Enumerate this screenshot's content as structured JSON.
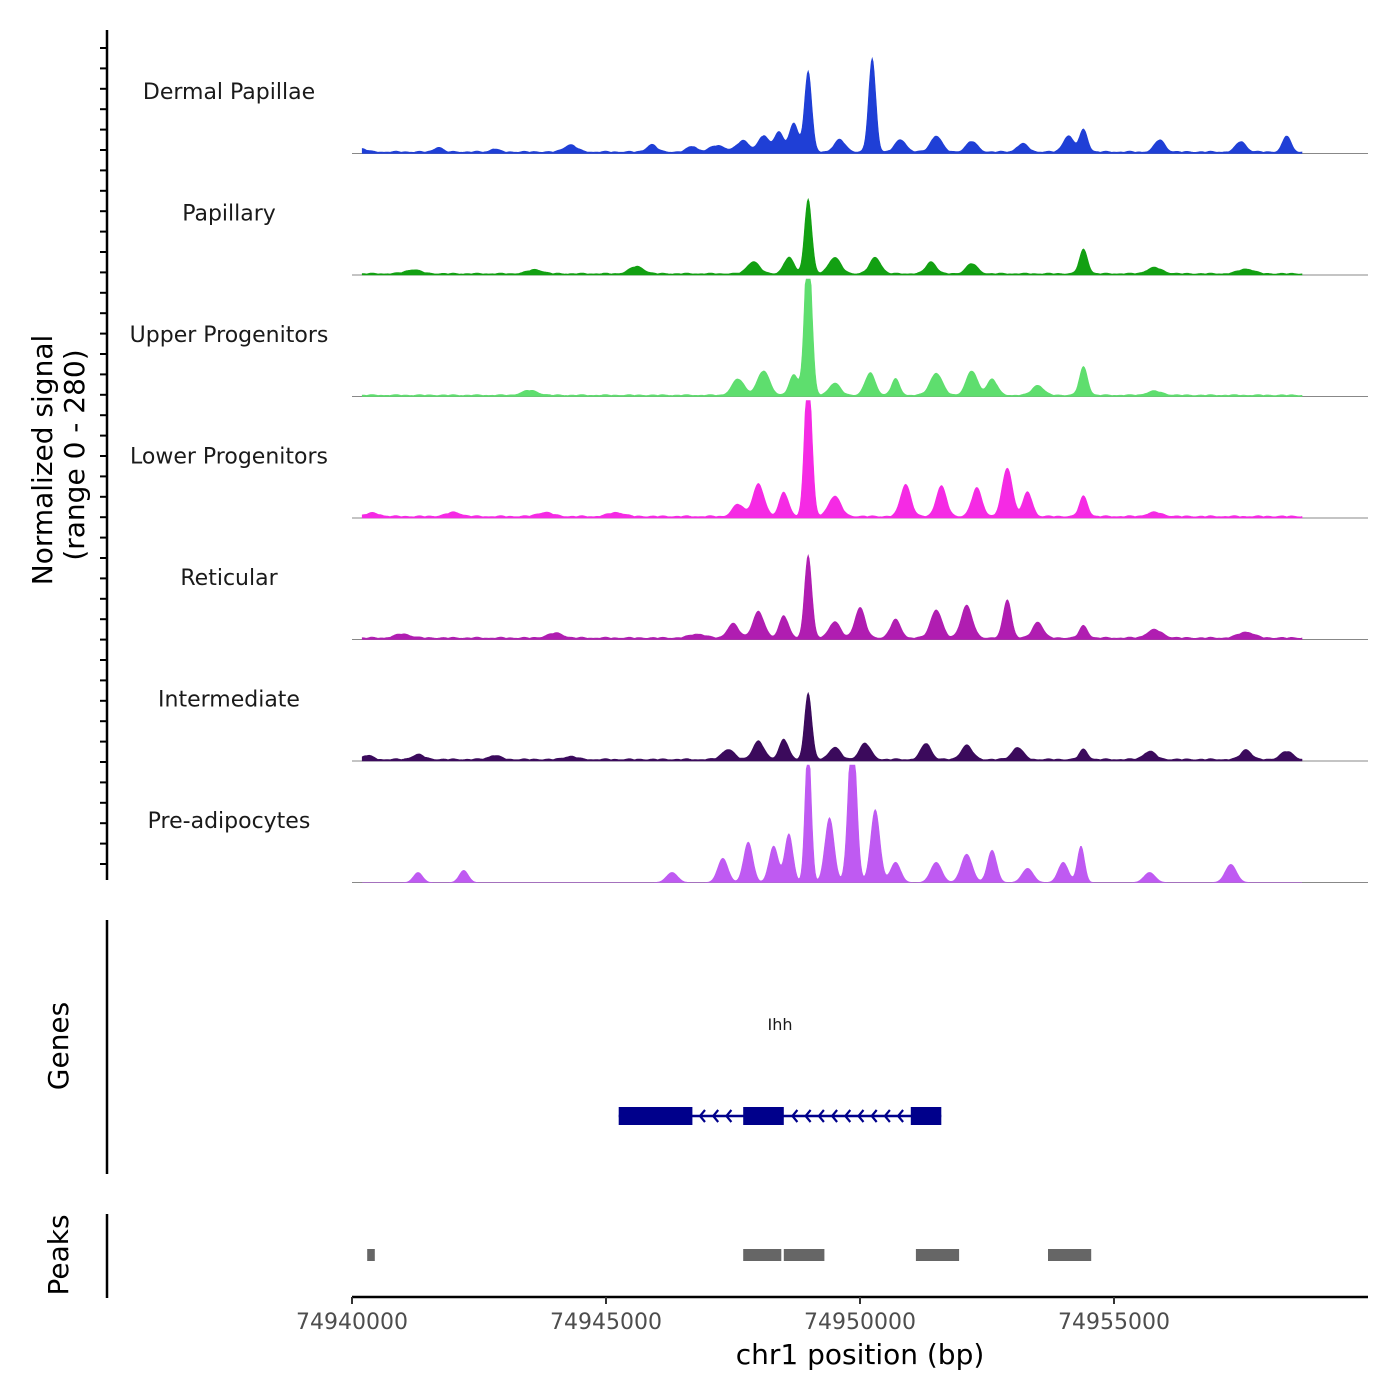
{
  "chart_data": {
    "type": "area",
    "title": "",
    "ylabel": "Normalized signal",
    "ylabel_range": "(range 0 - 280)",
    "xlabel": "chr1 position (bp)",
    "xlim": [
      74940000,
      74960000
    ],
    "ylim": [
      0,
      280
    ],
    "x_ticks": [
      74940000,
      74945000,
      74950000,
      74955000
    ],
    "x_tick_labels": [
      "74940000",
      "74945000",
      "74950000",
      "74955000"
    ],
    "series": [
      {
        "name": "Dermal Papillae",
        "color": "#1f3fd6",
        "baseline": 6,
        "peaks": [
          [
            74940200,
            8,
            90
          ],
          [
            74941700,
            12,
            80
          ],
          [
            74942800,
            8,
            80
          ],
          [
            74944300,
            18,
            120
          ],
          [
            74945900,
            18,
            100
          ],
          [
            74946700,
            14,
            100
          ],
          [
            74947200,
            16,
            150
          ],
          [
            74947700,
            28,
            120
          ],
          [
            74948100,
            40,
            100
          ],
          [
            74948400,
            50,
            90
          ],
          [
            74948700,
            70,
            90
          ],
          [
            74948980,
            200,
            70
          ],
          [
            74949600,
            30,
            110
          ],
          [
            74950240,
            230,
            70
          ],
          [
            74950800,
            30,
            110
          ],
          [
            74951500,
            40,
            110
          ],
          [
            74952200,
            26,
            110
          ],
          [
            74953200,
            20,
            110
          ],
          [
            74954100,
            40,
            100
          ],
          [
            74954400,
            55,
            80
          ],
          [
            74955900,
            30,
            100
          ],
          [
            74957500,
            26,
            100
          ],
          [
            74958400,
            40,
            80
          ]
        ]
      },
      {
        "name": "Papillary",
        "color": "#12a012",
        "baseline": 5,
        "peaks": [
          [
            74941200,
            10,
            150
          ],
          [
            74943600,
            10,
            150
          ],
          [
            74945600,
            18,
            140
          ],
          [
            74947900,
            30,
            120
          ],
          [
            74948600,
            40,
            100
          ],
          [
            74948980,
            185,
            70
          ],
          [
            74949500,
            40,
            120
          ],
          [
            74950300,
            40,
            110
          ],
          [
            74951400,
            30,
            100
          ],
          [
            74952200,
            25,
            110
          ],
          [
            74954400,
            60,
            80
          ],
          [
            74955800,
            15,
            150
          ],
          [
            74957600,
            12,
            150
          ]
        ]
      },
      {
        "name": "Upper Progenitors",
        "color": "#5ede6e",
        "baseline": 5,
        "peaks": [
          [
            74943500,
            12,
            150
          ],
          [
            74947600,
            40,
            120
          ],
          [
            74948100,
            60,
            120
          ],
          [
            74948700,
            50,
            90
          ],
          [
            74948980,
            390,
            70
          ],
          [
            74949500,
            30,
            110
          ],
          [
            74950200,
            55,
            100
          ],
          [
            74950700,
            40,
            80
          ],
          [
            74951500,
            55,
            120
          ],
          [
            74952200,
            60,
            110
          ],
          [
            74952600,
            40,
            100
          ],
          [
            74953500,
            25,
            110
          ],
          [
            74954400,
            70,
            80
          ],
          [
            74955800,
            10,
            150
          ]
        ]
      },
      {
        "name": "Lower Progenitors",
        "color": "#f52ae4",
        "baseline": 6,
        "peaks": [
          [
            74940400,
            8,
            150
          ],
          [
            74942000,
            10,
            150
          ],
          [
            74943800,
            10,
            150
          ],
          [
            74945200,
            10,
            150
          ],
          [
            74947600,
            30,
            110
          ],
          [
            74948000,
            80,
            110
          ],
          [
            74948500,
            60,
            90
          ],
          [
            74948980,
            370,
            70
          ],
          [
            74949500,
            50,
            120
          ],
          [
            74950900,
            80,
            100
          ],
          [
            74951600,
            75,
            100
          ],
          [
            74952300,
            70,
            100
          ],
          [
            74952900,
            120,
            100
          ],
          [
            74953300,
            60,
            90
          ],
          [
            74954400,
            50,
            80
          ],
          [
            74955800,
            10,
            150
          ]
        ]
      },
      {
        "name": "Reticular",
        "color": "#b01db1",
        "baseline": 6,
        "peaks": [
          [
            74941000,
            10,
            150
          ],
          [
            74944000,
            12,
            150
          ],
          [
            74946800,
            10,
            150
          ],
          [
            74947500,
            35,
            110
          ],
          [
            74948000,
            65,
            110
          ],
          [
            74948500,
            55,
            90
          ],
          [
            74948980,
            205,
            70
          ],
          [
            74949500,
            40,
            110
          ],
          [
            74950000,
            75,
            100
          ],
          [
            74950700,
            45,
            100
          ],
          [
            74951500,
            70,
            110
          ],
          [
            74952100,
            80,
            110
          ],
          [
            74952900,
            95,
            80
          ],
          [
            74953500,
            40,
            100
          ],
          [
            74954400,
            30,
            80
          ],
          [
            74955800,
            20,
            150
          ],
          [
            74957600,
            15,
            150
          ]
        ]
      },
      {
        "name": "Intermediate",
        "color": "#3b0a5c",
        "baseline": 6,
        "peaks": [
          [
            74940300,
            10,
            100
          ],
          [
            74941300,
            12,
            120
          ],
          [
            74942800,
            10,
            120
          ],
          [
            74944300,
            8,
            120
          ],
          [
            74947400,
            25,
            120
          ],
          [
            74948000,
            45,
            110
          ],
          [
            74948500,
            50,
            90
          ],
          [
            74948980,
            165,
            70
          ],
          [
            74949500,
            30,
            110
          ],
          [
            74950100,
            40,
            110
          ],
          [
            74951300,
            40,
            100
          ],
          [
            74952100,
            35,
            110
          ],
          [
            74953100,
            30,
            110
          ],
          [
            74954400,
            25,
            80
          ],
          [
            74955700,
            20,
            120
          ],
          [
            74957600,
            25,
            100
          ],
          [
            74958400,
            20,
            120
          ]
        ]
      },
      {
        "name": "Pre-adipocytes",
        "color": "#bf5af2",
        "baseline": 0,
        "peaks": [
          [
            74941300,
            25,
            90
          ],
          [
            74942200,
            30,
            90
          ],
          [
            74946300,
            25,
            110
          ],
          [
            74947300,
            60,
            100
          ],
          [
            74947800,
            100,
            90
          ],
          [
            74948300,
            90,
            90
          ],
          [
            74948600,
            120,
            80
          ],
          [
            74948980,
            350,
            60
          ],
          [
            74949400,
            160,
            90
          ],
          [
            74949850,
            395,
            80
          ],
          [
            74950300,
            180,
            90
          ],
          [
            74950700,
            50,
            100
          ],
          [
            74951500,
            50,
            110
          ],
          [
            74952100,
            70,
            110
          ],
          [
            74952600,
            80,
            90
          ],
          [
            74953300,
            35,
            110
          ],
          [
            74954000,
            50,
            100
          ],
          [
            74954350,
            90,
            70
          ],
          [
            74955700,
            25,
            110
          ],
          [
            74957300,
            45,
            110
          ]
        ]
      }
    ],
    "genes": {
      "label": "Ihh",
      "color": "#00008b",
      "strand": "-",
      "start": 74945250,
      "end": 74951600,
      "exons": [
        [
          74945250,
          74946700
        ],
        [
          74947700,
          74948500
        ],
        [
          74951000,
          74951600
        ]
      ]
    },
    "peaks_track": {
      "color": "#666666",
      "regions": [
        [
          74940300,
          74940450
        ],
        [
          74947700,
          74948450
        ],
        [
          74948500,
          74949300
        ],
        [
          74951100,
          74951950
        ],
        [
          74953700,
          74954550
        ]
      ]
    },
    "track_titles": {
      "genes": "Genes",
      "peaks": "Peaks"
    }
  }
}
